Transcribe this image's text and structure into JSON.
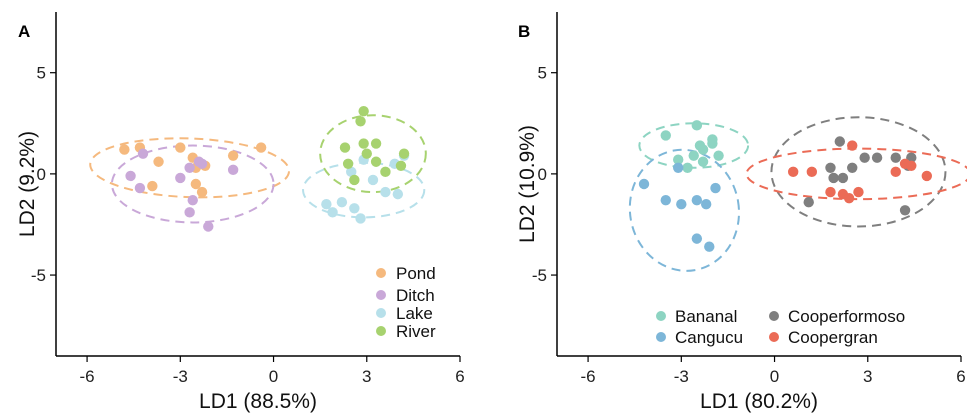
{
  "chart_data": [
    {
      "type": "scatter",
      "panel_label": "A",
      "xlabel": "LD1 (88.5%)",
      "ylabel": "LD2 (9.2%)",
      "xlim": [
        -7,
        6
      ],
      "ylim": [
        -9,
        8
      ],
      "xticks": [
        -6,
        -3,
        0,
        3,
        6
      ],
      "yticks": [
        -5,
        0,
        5
      ],
      "legend_position": "bottom-right",
      "series": [
        {
          "name": "Pond",
          "color": "#F5B97E",
          "points": [
            [
              -4.8,
              1.2
            ],
            [
              -4.3,
              1.3
            ],
            [
              -3.7,
              0.6
            ],
            [
              -3.9,
              -0.6
            ],
            [
              -3.0,
              1.3
            ],
            [
              -2.6,
              0.8
            ],
            [
              -2.5,
              0.3
            ],
            [
              -2.2,
              0.4
            ],
            [
              -2.5,
              -0.5
            ],
            [
              -2.3,
              -0.9
            ],
            [
              -1.3,
              0.9
            ],
            [
              -0.4,
              1.3
            ]
          ],
          "ellipse": {
            "cx": -2.7,
            "cy": 0.3,
            "rx": 3.2,
            "ry": 1.45,
            "angle": -2
          }
        },
        {
          "name": "Ditch",
          "color": "#C9A8D8",
          "points": [
            [
              -4.6,
              -0.1
            ],
            [
              -4.3,
              -0.7
            ],
            [
              -4.2,
              1.0
            ],
            [
              -3.0,
              -0.2
            ],
            [
              -2.7,
              0.3
            ],
            [
              -2.4,
              0.6
            ],
            [
              -2.3,
              0.5
            ],
            [
              -2.6,
              -1.3
            ],
            [
              -2.7,
              -1.9
            ],
            [
              -2.1,
              -2.6
            ],
            [
              -1.3,
              0.2
            ]
          ],
          "ellipse": {
            "cx": -2.6,
            "cy": -0.5,
            "rx": 2.6,
            "ry": 1.9,
            "angle": 0
          }
        },
        {
          "name": "Lake",
          "color": "#B7E0EA",
          "points": [
            [
              1.7,
              -1.5
            ],
            [
              1.9,
              -1.9
            ],
            [
              2.2,
              -1.4
            ],
            [
              2.6,
              -1.7
            ],
            [
              2.8,
              -2.2
            ],
            [
              2.5,
              0.1
            ],
            [
              3.2,
              -0.3
            ],
            [
              2.9,
              0.7
            ],
            [
              3.6,
              -0.9
            ],
            [
              3.9,
              0.5
            ],
            [
              4.0,
              -1.0
            ],
            [
              4.2,
              0.9
            ]
          ],
          "ellipse": {
            "cx": 2.9,
            "cy": -0.8,
            "rx": 1.95,
            "ry": 1.35,
            "angle": 0
          }
        },
        {
          "name": "River",
          "color": "#A7D26F",
          "points": [
            [
              2.3,
              1.3
            ],
            [
              2.4,
              0.5
            ],
            [
              2.6,
              -0.3
            ],
            [
              2.8,
              2.6
            ],
            [
              2.9,
              3.1
            ],
            [
              2.9,
              1.5
            ],
            [
              3.3,
              1.5
            ],
            [
              3.0,
              1.0
            ],
            [
              3.3,
              0.6
            ],
            [
              3.6,
              0.1
            ],
            [
              4.1,
              0.4
            ],
            [
              4.2,
              1.0
            ]
          ],
          "ellipse": {
            "cx": 3.2,
            "cy": 1.0,
            "rx": 1.7,
            "ry": 1.9,
            "angle": 0
          }
        }
      ]
    },
    {
      "type": "scatter",
      "panel_label": "B",
      "xlabel": "LD1 (80.2%)",
      "ylabel": "LD2 (10.9%)",
      "xlim": [
        -7,
        6
      ],
      "ylim": [
        -9,
        8
      ],
      "xticks": [
        -6,
        -3,
        0,
        3,
        6
      ],
      "yticks": [
        -5,
        0,
        5
      ],
      "legend_position": "bottom",
      "series": [
        {
          "name": "Bananal",
          "color": "#8DD4C2",
          "points": [
            [
              -3.5,
              1.9
            ],
            [
              -3.1,
              0.7
            ],
            [
              -2.5,
              2.4
            ],
            [
              -2.4,
              1.4
            ],
            [
              -2.6,
              0.9
            ],
            [
              -2.3,
              1.2
            ],
            [
              -2.0,
              1.5
            ],
            [
              -2.3,
              0.6
            ],
            [
              -1.8,
              0.9
            ],
            [
              -2.0,
              1.7
            ],
            [
              -2.8,
              0.3
            ]
          ],
          "ellipse": {
            "cx": -2.6,
            "cy": 1.4,
            "rx": 1.75,
            "ry": 1.1,
            "angle": 0
          }
        },
        {
          "name": "Cangucu",
          "color": "#7DB6D8",
          "points": [
            [
              -4.2,
              -0.5
            ],
            [
              -3.5,
              -1.3
            ],
            [
              -3.1,
              0.3
            ],
            [
              -2.5,
              -1.3
            ],
            [
              -2.2,
              -1.5
            ],
            [
              -2.5,
              -3.2
            ],
            [
              -2.1,
              -3.6
            ],
            [
              -1.9,
              -0.7
            ],
            [
              -3.0,
              -1.5
            ]
          ],
          "ellipse": {
            "cx": -2.9,
            "cy": -1.8,
            "rx": 1.75,
            "ry": 3.0,
            "angle": 10
          }
        },
        {
          "name": "Cooperformoso",
          "color": "#7F7F7F",
          "points": [
            [
              1.1,
              -1.4
            ],
            [
              1.9,
              -0.2
            ],
            [
              1.8,
              0.3
            ],
            [
              2.1,
              1.6
            ],
            [
              2.2,
              -0.2
            ],
            [
              2.5,
              0.3
            ],
            [
              2.9,
              0.8
            ],
            [
              3.3,
              0.8
            ],
            [
              3.9,
              0.8
            ],
            [
              4.2,
              -1.8
            ],
            [
              4.4,
              0.8
            ],
            [
              4.3,
              0.4
            ]
          ],
          "ellipse": {
            "cx": 2.7,
            "cy": 0.1,
            "rx": 2.8,
            "ry": 2.7,
            "angle": 0
          }
        },
        {
          "name": "Coopergran",
          "color": "#EB6B56",
          "points": [
            [
              0.6,
              0.1
            ],
            [
              1.2,
              0.1
            ],
            [
              1.8,
              -0.9
            ],
            [
              2.2,
              -1.0
            ],
            [
              2.4,
              -1.2
            ],
            [
              2.5,
              1.4
            ],
            [
              2.7,
              -0.9
            ],
            [
              3.9,
              0.1
            ],
            [
              4.2,
              0.5
            ],
            [
              4.4,
              0.4
            ],
            [
              4.9,
              -0.1
            ]
          ],
          "ellipse": {
            "cx": 2.7,
            "cy": 0.0,
            "rx": 3.6,
            "ry": 1.25,
            "angle": 0
          }
        }
      ]
    }
  ]
}
